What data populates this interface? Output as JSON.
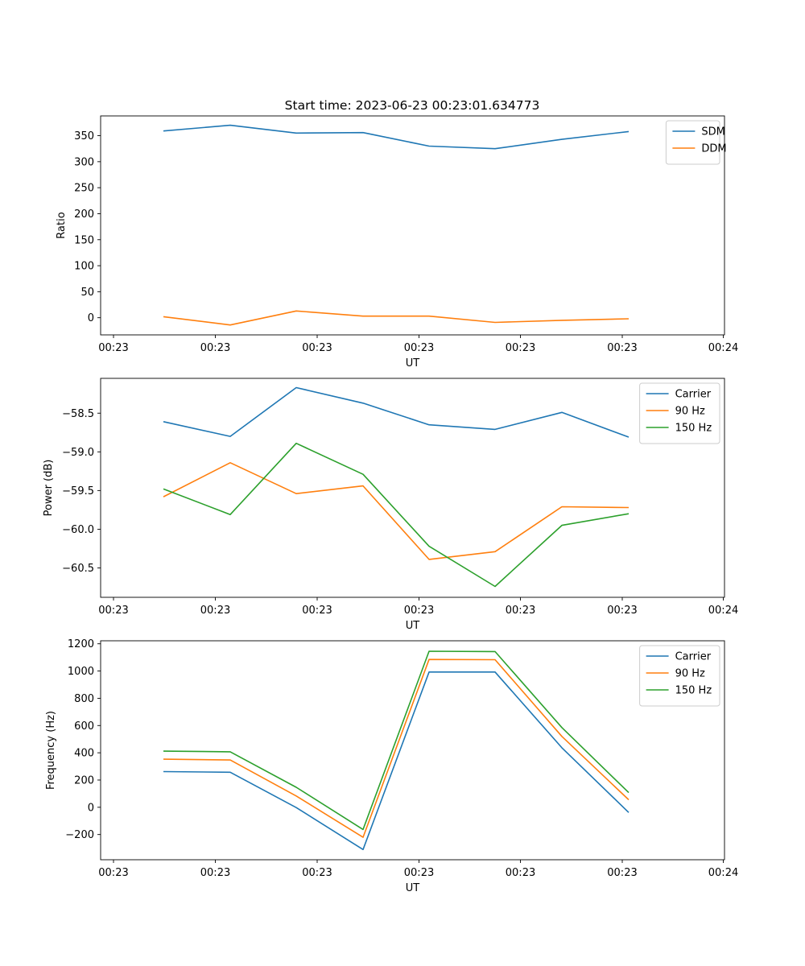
{
  "figure": {
    "title": "Start time: 2023-06-23 00:23:01.634773"
  },
  "chart_data": [
    {
      "type": "line",
      "title": "Start time: 2023-06-23 00:23:01.634773",
      "xlabel": "UT",
      "ylabel": "Ratio",
      "x_tick_labels": [
        "00:23",
        "00:23",
        "00:23",
        "00:23",
        "00:23",
        "00:23",
        "00:24"
      ],
      "ylim": [
        -33,
        388
      ],
      "y_ticks": [
        0,
        50,
        100,
        150,
        200,
        250,
        300,
        350
      ],
      "legend_position": "top-right",
      "grid": false,
      "series": [
        {
          "name": "SDM",
          "color": "#1f77b4",
          "values": [
            359,
            370,
            355,
            356,
            330,
            325,
            343,
            358
          ]
        },
        {
          "name": "DDM",
          "color": "#ff7f0e",
          "values": [
            2,
            -14,
            13,
            3,
            3,
            -9,
            -5,
            -2
          ]
        }
      ]
    },
    {
      "type": "line",
      "title": "",
      "xlabel": "UT",
      "ylabel": "Power (dB)",
      "x_tick_labels": [
        "00:23",
        "00:23",
        "00:23",
        "00:23",
        "00:23",
        "00:23",
        "00:24"
      ],
      "ylim": [
        -60.88,
        -58.05
      ],
      "y_ticks": [
        -60.5,
        -60.0,
        -59.5,
        -59.0,
        -58.5
      ],
      "y_tick_labels": [
        "−60.5",
        "−60.0",
        "−59.5",
        "−59.0",
        "−58.5"
      ],
      "legend_position": "top-right",
      "grid": false,
      "series": [
        {
          "name": "Carrier",
          "color": "#1f77b4",
          "values": [
            -58.61,
            -58.8,
            -58.17,
            -58.37,
            -58.65,
            -58.71,
            -58.49,
            -58.81
          ]
        },
        {
          "name": "90 Hz",
          "color": "#ff7f0e",
          "values": [
            -59.58,
            -59.14,
            -59.54,
            -59.44,
            -60.39,
            -60.29,
            -59.71,
            -59.72
          ]
        },
        {
          "name": "150 Hz",
          "color": "#2ca02c",
          "values": [
            -59.48,
            -59.81,
            -58.89,
            -59.29,
            -60.22,
            -60.74,
            -59.95,
            -59.8
          ]
        }
      ]
    },
    {
      "type": "line",
      "title": "",
      "xlabel": "UT",
      "ylabel": "Frequency (Hz)",
      "x_tick_labels": [
        "00:23",
        "00:23",
        "00:23",
        "00:23",
        "00:23",
        "00:23",
        "00:24"
      ],
      "ylim": [
        -385,
        1222
      ],
      "y_ticks": [
        -200,
        0,
        200,
        400,
        600,
        800,
        1000,
        1200
      ],
      "y_tick_labels": [
        "−200",
        "0",
        "200",
        "400",
        "600",
        "800",
        "1000",
        "1200"
      ],
      "legend_position": "top-right",
      "grid": false,
      "series": [
        {
          "name": "Carrier",
          "color": "#1f77b4",
          "values": [
            262,
            257,
            -2,
            -310,
            993,
            993,
            437,
            -38
          ]
        },
        {
          "name": "90 Hz",
          "color": "#ff7f0e",
          "values": [
            353,
            347,
            83,
            -220,
            1085,
            1083,
            520,
            55
          ]
        },
        {
          "name": "150 Hz",
          "color": "#2ca02c",
          "values": [
            412,
            407,
            147,
            -163,
            1145,
            1143,
            585,
            108
          ]
        }
      ]
    }
  ]
}
